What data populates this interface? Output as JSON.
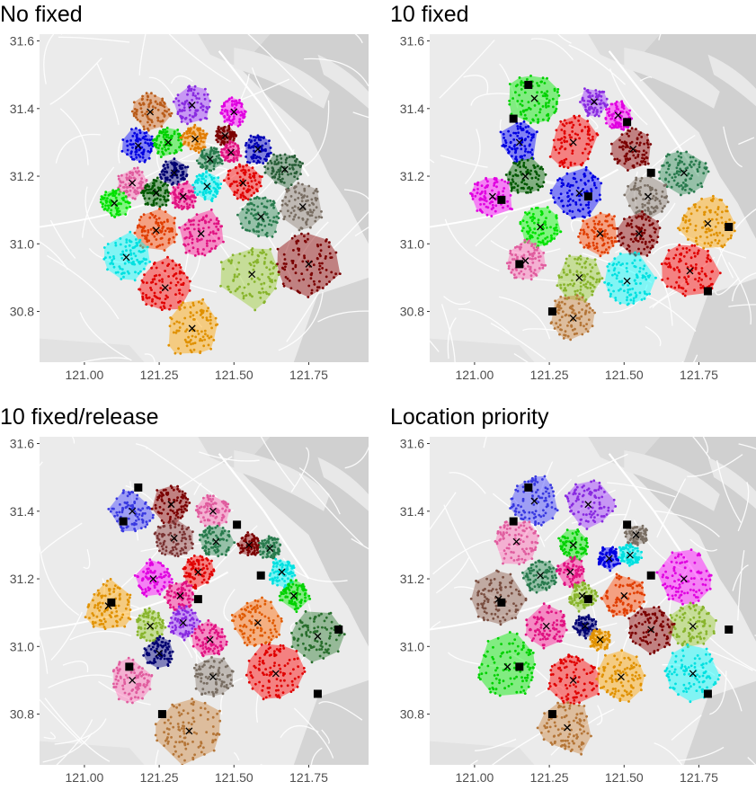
{
  "figure": {
    "panels": [
      {
        "title": "No fixed"
      },
      {
        "title": "10 fixed"
      },
      {
        "title": "10 fixed/release"
      },
      {
        "title": "Location priority"
      }
    ]
  },
  "chart_data": [
    {
      "type": "scatter",
      "title": "No fixed",
      "xlabel": "",
      "ylabel": "",
      "xlim": [
        120.85,
        121.95
      ],
      "ylim": [
        30.65,
        31.62
      ],
      "xticks": [
        "121.00",
        "121.25",
        "121.50",
        "121.75"
      ],
      "yticks": [
        "30.8",
        "31.0",
        "31.2",
        "31.4",
        "31.6"
      ],
      "basemap": "grey road map of Shanghai",
      "fixed_marker": "black square",
      "center_marker": "black x",
      "clusters": [
        {
          "color": "#d2691e",
          "center": [
            121.22,
            31.39
          ]
        },
        {
          "color": "#9b30ff",
          "center": [
            121.36,
            31.41
          ]
        },
        {
          "color": "#0000ff",
          "center": [
            121.18,
            31.29
          ]
        },
        {
          "color": "#ff00ff",
          "center": [
            121.5,
            31.39
          ]
        },
        {
          "color": "#00ee00",
          "center": [
            121.28,
            31.3
          ]
        },
        {
          "color": "#ff8c00",
          "center": [
            121.37,
            31.31
          ]
        },
        {
          "color": "#8b0000",
          "center": [
            121.47,
            31.32
          ]
        },
        {
          "color": "#2e8b57",
          "center": [
            121.42,
            31.25
          ]
        },
        {
          "color": "#ff1493",
          "center": [
            121.49,
            31.27
          ]
        },
        {
          "color": "#0000cd",
          "center": [
            121.58,
            31.28
          ]
        },
        {
          "color": "#ff69b4",
          "center": [
            121.16,
            31.18
          ]
        },
        {
          "color": "#000080",
          "center": [
            121.3,
            31.21
          ]
        },
        {
          "color": "#ff0000",
          "center": [
            121.53,
            31.18
          ]
        },
        {
          "color": "#2e6b3f",
          "center": [
            121.67,
            31.22
          ]
        },
        {
          "color": "#00ff00",
          "center": [
            121.1,
            31.12
          ]
        },
        {
          "color": "#006400",
          "center": [
            121.24,
            31.15
          ]
        },
        {
          "color": "#ff1493",
          "center": [
            121.33,
            31.14
          ]
        },
        {
          "color": "#00ffff",
          "center": [
            121.41,
            31.17
          ]
        },
        {
          "color": "#8a7d70",
          "center": [
            121.73,
            31.11
          ]
        },
        {
          "color": "#2e8b57",
          "center": [
            121.59,
            31.08
          ]
        },
        {
          "color": "#ff4500",
          "center": [
            121.24,
            31.04
          ]
        },
        {
          "color": "#ff1493",
          "center": [
            121.39,
            31.03
          ]
        },
        {
          "color": "#00ffff",
          "center": [
            121.14,
            30.96
          ]
        },
        {
          "color": "#9acd32",
          "center": [
            121.56,
            30.91
          ]
        },
        {
          "color": "#8b0000",
          "center": [
            121.75,
            30.94
          ]
        },
        {
          "color": "#ff0000",
          "center": [
            121.27,
            30.87
          ]
        },
        {
          "color": "#ffa500",
          "center": [
            121.36,
            30.75
          ]
        }
      ]
    },
    {
      "type": "scatter",
      "title": "10 fixed",
      "xlabel": "",
      "ylabel": "",
      "xlim": [
        120.85,
        121.95
      ],
      "ylim": [
        30.65,
        31.62
      ],
      "xticks": [
        "121.00",
        "121.25",
        "121.50",
        "121.75"
      ],
      "yticks": [
        "30.8",
        "31.0",
        "31.2",
        "31.4",
        "31.6"
      ],
      "fixed_points": [
        [
          121.18,
          31.47
        ],
        [
          121.13,
          31.37
        ],
        [
          121.09,
          31.13
        ],
        [
          121.15,
          30.94
        ],
        [
          121.26,
          30.8
        ],
        [
          121.51,
          31.36
        ],
        [
          121.59,
          31.21
        ],
        [
          121.38,
          31.14
        ],
        [
          121.85,
          31.05
        ],
        [
          121.78,
          30.86
        ]
      ],
      "clusters": [
        {
          "color": "#00ee00",
          "center": [
            121.2,
            31.43
          ]
        },
        {
          "color": "#9b30ff",
          "center": [
            121.4,
            31.42
          ]
        },
        {
          "color": "#ff00ff",
          "center": [
            121.48,
            31.38
          ]
        },
        {
          "color": "#0000ff",
          "center": [
            121.15,
            31.3
          ]
        },
        {
          "color": "#ff0000",
          "center": [
            121.33,
            31.3
          ]
        },
        {
          "color": "#8b0000",
          "center": [
            121.53,
            31.28
          ]
        },
        {
          "color": "#006400",
          "center": [
            121.17,
            31.2
          ]
        },
        {
          "color": "#2e8b57",
          "center": [
            121.7,
            31.21
          ]
        },
        {
          "color": "#ff00ff",
          "center": [
            121.06,
            31.14
          ]
        },
        {
          "color": "#0000ff",
          "center": [
            121.35,
            31.15
          ]
        },
        {
          "color": "#8a7d70",
          "center": [
            121.58,
            31.14
          ]
        },
        {
          "color": "#00ff00",
          "center": [
            121.22,
            31.05
          ]
        },
        {
          "color": "#ff4500",
          "center": [
            121.42,
            31.03
          ]
        },
        {
          "color": "#ffa500",
          "center": [
            121.78,
            31.06
          ]
        },
        {
          "color": "#8b0000",
          "center": [
            121.55,
            31.03
          ]
        },
        {
          "color": "#ff69b4",
          "center": [
            121.17,
            30.95
          ]
        },
        {
          "color": "#9acd32",
          "center": [
            121.35,
            30.9
          ]
        },
        {
          "color": "#00ffff",
          "center": [
            121.51,
            30.89
          ]
        },
        {
          "color": "#ff0000",
          "center": [
            121.72,
            30.92
          ]
        },
        {
          "color": "#cd853f",
          "center": [
            121.33,
            30.78
          ]
        }
      ]
    },
    {
      "type": "scatter",
      "title": "10 fixed/release",
      "xlabel": "",
      "ylabel": "",
      "xlim": [
        120.85,
        121.95
      ],
      "ylim": [
        30.65,
        31.62
      ],
      "xticks": [
        "121.00",
        "121.25",
        "121.50",
        "121.75"
      ],
      "yticks": [
        "30.8",
        "31.0",
        "31.2",
        "31.4",
        "31.6"
      ],
      "fixed_points": [
        [
          121.18,
          31.47
        ],
        [
          121.13,
          31.37
        ],
        [
          121.09,
          31.13
        ],
        [
          121.15,
          30.94
        ],
        [
          121.26,
          30.8
        ],
        [
          121.51,
          31.36
        ],
        [
          121.59,
          31.21
        ],
        [
          121.38,
          31.14
        ],
        [
          121.85,
          31.05
        ],
        [
          121.78,
          30.86
        ]
      ],
      "clusters": [
        {
          "color": "#4040ff",
          "center": [
            121.16,
            31.4
          ]
        },
        {
          "color": "#8b0000",
          "center": [
            121.29,
            31.42
          ]
        },
        {
          "color": "#ff69b4",
          "center": [
            121.43,
            31.4
          ]
        },
        {
          "color": "#8b3a3a",
          "center": [
            121.3,
            31.32
          ]
        },
        {
          "color": "#2e8b57",
          "center": [
            121.44,
            31.31
          ]
        },
        {
          "color": "#8b0000",
          "center": [
            121.55,
            31.3
          ]
        },
        {
          "color": "#ff00ff",
          "center": [
            121.23,
            31.2
          ]
        },
        {
          "color": "#ff0000",
          "center": [
            121.38,
            31.22
          ]
        },
        {
          "color": "#2e8b57",
          "center": [
            121.62,
            31.29
          ]
        },
        {
          "color": "#00ffff",
          "center": [
            121.66,
            31.22
          ]
        },
        {
          "color": "#ffa500",
          "center": [
            121.08,
            31.12
          ]
        },
        {
          "color": "#ff1493",
          "center": [
            121.32,
            31.15
          ]
        },
        {
          "color": "#00ee00",
          "center": [
            121.7,
            31.15
          ]
        },
        {
          "color": "#9acd32",
          "center": [
            121.22,
            31.06
          ]
        },
        {
          "color": "#9b30ff",
          "center": [
            121.33,
            31.07
          ]
        },
        {
          "color": "#ff6600",
          "center": [
            121.58,
            31.07
          ]
        },
        {
          "color": "#000080",
          "center": [
            121.25,
            30.98
          ]
        },
        {
          "color": "#ff1493",
          "center": [
            121.42,
            31.02
          ]
        },
        {
          "color": "#2e7d32",
          "center": [
            121.78,
            31.03
          ]
        },
        {
          "color": "#ff69b4",
          "center": [
            121.16,
            30.9
          ]
        },
        {
          "color": "#8a7d70",
          "center": [
            121.43,
            30.91
          ]
        },
        {
          "color": "#ff0000",
          "center": [
            121.64,
            30.92
          ]
        },
        {
          "color": "#cd853f",
          "center": [
            121.35,
            30.75
          ]
        }
      ]
    },
    {
      "type": "scatter",
      "title": "Location priority",
      "xlabel": "",
      "ylabel": "",
      "xlim": [
        120.85,
        121.95
      ],
      "ylim": [
        30.65,
        31.62
      ],
      "xticks": [
        "121.00",
        "121.25",
        "121.50",
        "121.75"
      ],
      "yticks": [
        "30.8",
        "31.0",
        "31.2",
        "31.4",
        "31.6"
      ],
      "fixed_points": [
        [
          121.18,
          31.47
        ],
        [
          121.13,
          31.37
        ],
        [
          121.09,
          31.13
        ],
        [
          121.15,
          30.94
        ],
        [
          121.26,
          30.8
        ],
        [
          121.51,
          31.36
        ],
        [
          121.59,
          31.21
        ],
        [
          121.38,
          31.14
        ],
        [
          121.85,
          31.05
        ],
        [
          121.78,
          30.86
        ]
      ],
      "clusters": [
        {
          "color": "#4040ff",
          "center": [
            121.2,
            31.43
          ]
        },
        {
          "color": "#9b30ff",
          "center": [
            121.38,
            31.42
          ]
        },
        {
          "color": "#ff69b4",
          "center": [
            121.14,
            31.31
          ]
        },
        {
          "color": "#00ee00",
          "center": [
            121.33,
            31.3
          ]
        },
        {
          "color": "#8a7d70",
          "center": [
            121.54,
            31.33
          ]
        },
        {
          "color": "#2e8b57",
          "center": [
            121.22,
            31.21
          ]
        },
        {
          "color": "#ff1493",
          "center": [
            121.32,
            31.22
          ]
        },
        {
          "color": "#0000ff",
          "center": [
            121.45,
            31.26
          ]
        },
        {
          "color": "#00ffff",
          "center": [
            121.52,
            31.27
          ]
        },
        {
          "color": "#ff00ff",
          "center": [
            121.7,
            31.2
          ]
        },
        {
          "color": "#8b5a4a",
          "center": [
            121.08,
            31.14
          ]
        },
        {
          "color": "#9acd32",
          "center": [
            121.36,
            31.15
          ]
        },
        {
          "color": "#ff4500",
          "center": [
            121.5,
            31.15
          ]
        },
        {
          "color": "#000080",
          "center": [
            121.37,
            31.06
          ]
        },
        {
          "color": "#9acd32",
          "center": [
            121.73,
            31.06
          ]
        },
        {
          "color": "#ff1493",
          "center": [
            121.24,
            31.06
          ]
        },
        {
          "color": "#ffa500",
          "center": [
            121.42,
            31.02
          ]
        },
        {
          "color": "#8b0000",
          "center": [
            121.59,
            31.05
          ]
        },
        {
          "color": "#00ee00",
          "center": [
            121.11,
            30.94
          ]
        },
        {
          "color": "#ff0000",
          "center": [
            121.33,
            30.9
          ]
        },
        {
          "color": "#ffa500",
          "center": [
            121.49,
            30.91
          ]
        },
        {
          "color": "#00ffff",
          "center": [
            121.73,
            30.92
          ]
        },
        {
          "color": "#cd853f",
          "center": [
            121.31,
            30.76
          ]
        }
      ]
    }
  ]
}
